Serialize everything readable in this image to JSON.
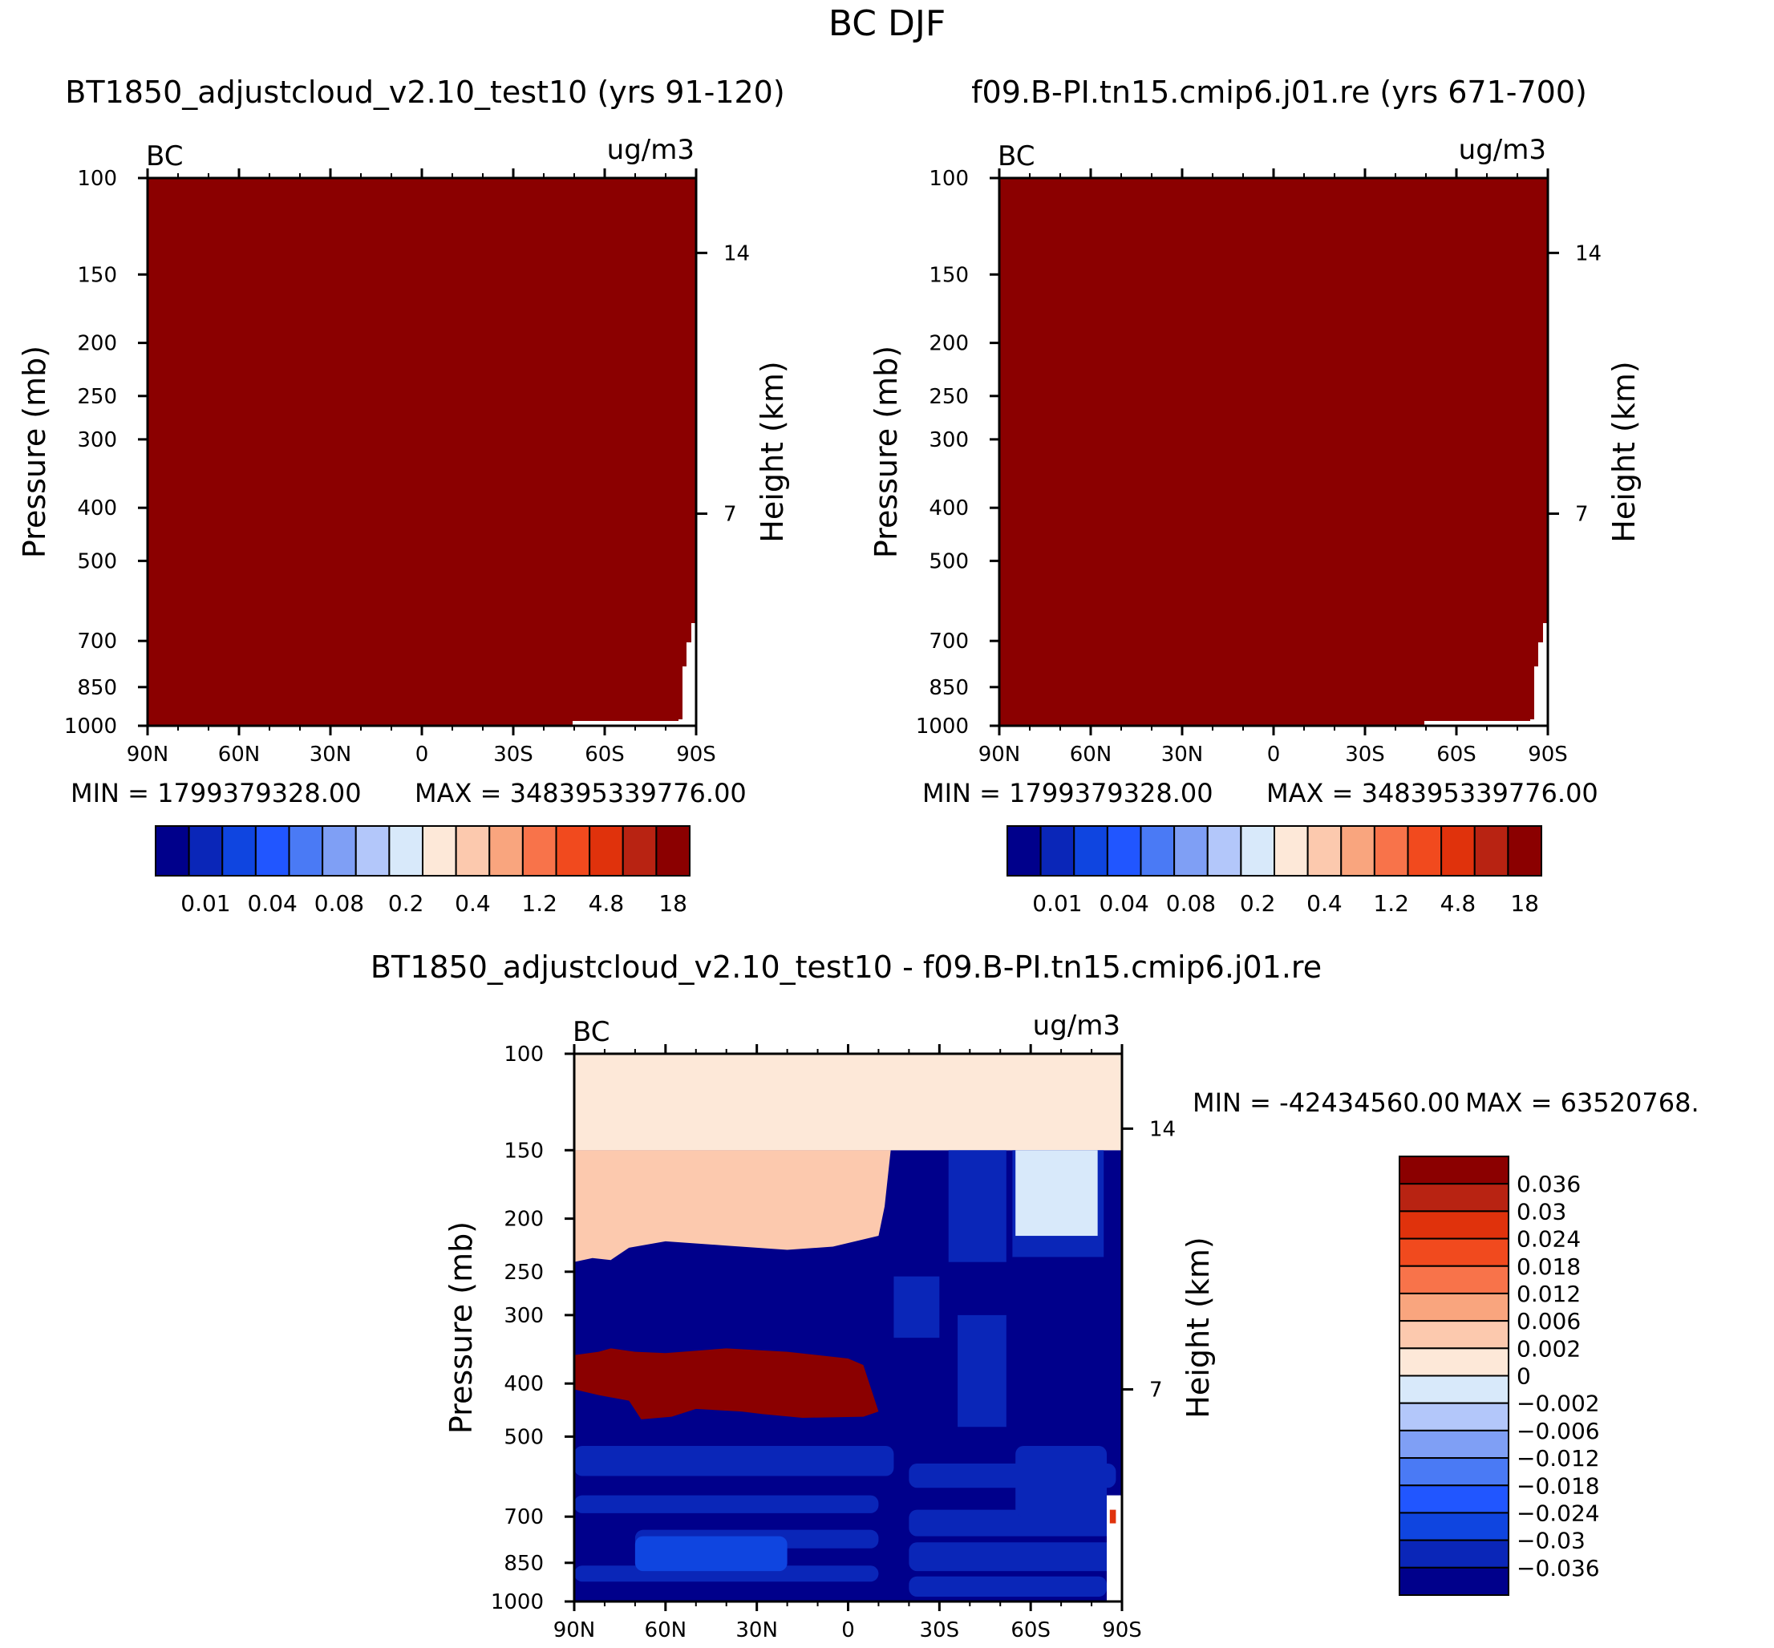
{
  "figure": {
    "title": "BC DJF"
  },
  "chart_data": [
    {
      "type": "heatmap",
      "title": "BT1850_adjustcloud_v2.10_test10 (yrs 91-120)",
      "variable": "BC",
      "units": "ug/m3",
      "xlabel": "",
      "ylabel": "Pressure (mb)",
      "y2label": "Height (km)",
      "x_ticklabels": [
        "90N",
        "60N",
        "30N",
        "0",
        "30S",
        "60S",
        "90S"
      ],
      "y_ticklabels": [
        "100",
        "150",
        "200",
        "250",
        "300",
        "400",
        "500",
        "700",
        "850",
        "1000"
      ],
      "y2_ticklabels": [
        "14",
        "7"
      ],
      "min_label": "MIN = 1799379328.00",
      "max_label": "MAX = 348395339776.00",
      "colorbar": {
        "colors": [
          "#00008b",
          "#0a26b8",
          "#0f45e0",
          "#2156ff",
          "#4a7af5",
          "#7f9ff5",
          "#b3c7fa",
          "#d8e9fa",
          "#fde8d8",
          "#fcc9ae",
          "#f9a57e",
          "#f8734a",
          "#f14a1e",
          "#e0320c",
          "#b82312",
          "#8b0000"
        ],
        "labels": [
          "0.01",
          "0.04",
          "0.08",
          "0.2",
          "0.4",
          "1.2",
          "4.8",
          "18"
        ]
      }
    },
    {
      "type": "heatmap",
      "title": "f09.B-PI.tn15.cmip6.j01.re (yrs 671-700)",
      "variable": "BC",
      "units": "ug/m3",
      "xlabel": "",
      "ylabel": "Pressure (mb)",
      "y2label": "Height (km)",
      "x_ticklabels": [
        "90N",
        "60N",
        "30N",
        "0",
        "30S",
        "60S",
        "90S"
      ],
      "y_ticklabels": [
        "100",
        "150",
        "200",
        "250",
        "300",
        "400",
        "500",
        "700",
        "850",
        "1000"
      ],
      "y2_ticklabels": [
        "14",
        "7"
      ],
      "min_label": "MIN = 1799379328.00",
      "max_label": "MAX = 348395339776.00",
      "colorbar": {
        "labels": [
          "0.01",
          "0.04",
          "0.08",
          "0.2",
          "0.4",
          "1.2",
          "4.8",
          "18"
        ]
      }
    },
    {
      "type": "heatmap",
      "title": "BT1850_adjustcloud_v2.10_test10 - f09.B-PI.tn15.cmip6.j01.re",
      "variable": "BC",
      "units": "ug/m3",
      "xlabel": "",
      "ylabel": "Pressure (mb)",
      "y2label": "Height (km)",
      "x_ticklabels": [
        "90N",
        "60N",
        "30N",
        "0",
        "30S",
        "60S",
        "90S"
      ],
      "y_ticklabels": [
        "100",
        "150",
        "200",
        "250",
        "300",
        "400",
        "500",
        "700",
        "850",
        "1000"
      ],
      "y2_ticklabels": [
        "14",
        "7"
      ],
      "min_label": "MIN = -42434560.00",
      "max_label": "MAX = 63520768.",
      "colorbar": {
        "colors": [
          "#8b0000",
          "#b82312",
          "#e0320c",
          "#f14a1e",
          "#f8734a",
          "#f9a57e",
          "#fcc9ae",
          "#fde8d8",
          "#d8e9fa",
          "#b3c7fa",
          "#7f9ff5",
          "#4a7af5",
          "#2156ff",
          "#0f45e0",
          "#0a26b8",
          "#00008b"
        ],
        "labels": [
          "0.036",
          "0.03",
          "0.024",
          "0.018",
          "0.012",
          "0.006",
          "0.002",
          "0",
          "-0.002",
          "-0.006",
          "-0.012",
          "-0.018",
          "-0.024",
          "-0.03",
          "-0.036"
        ]
      }
    }
  ]
}
